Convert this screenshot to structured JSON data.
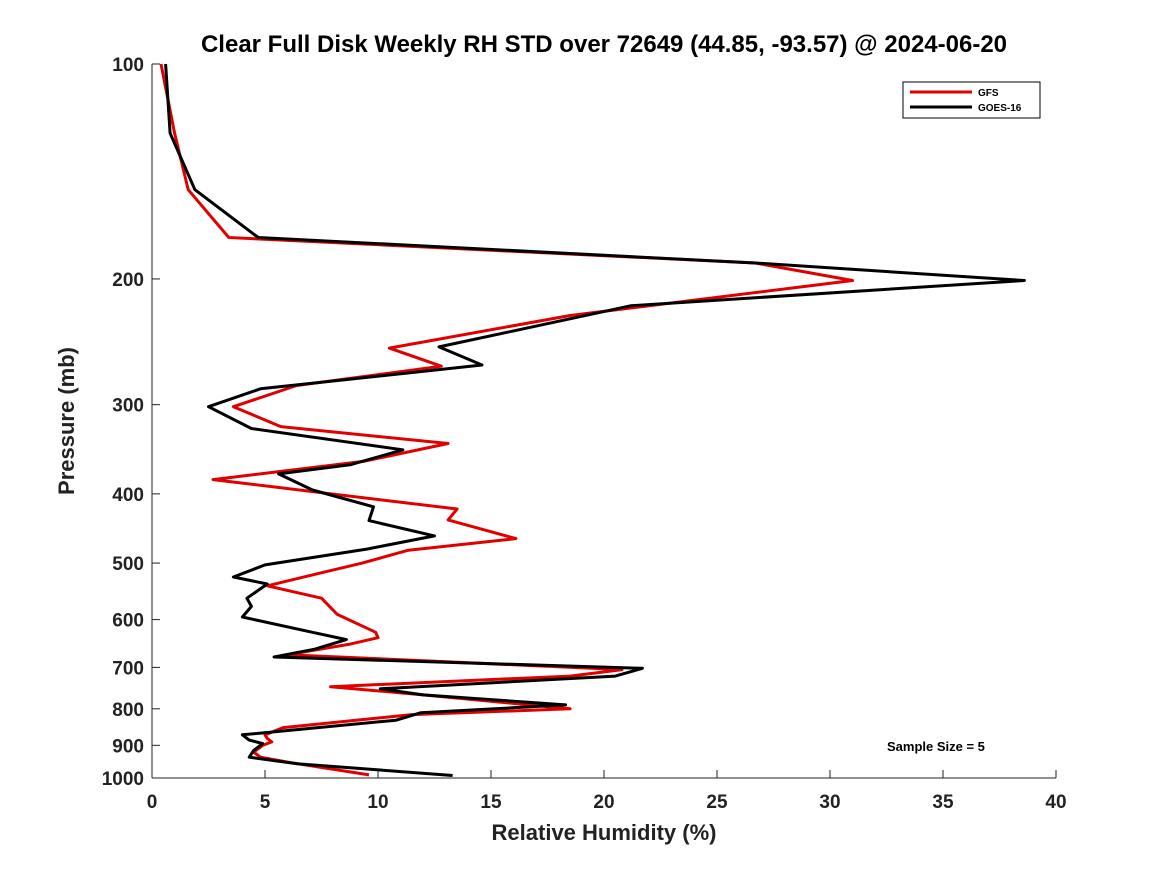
{
  "chart_data": {
    "type": "line",
    "title": "Clear Full Disk Weekly RH STD over 72649 (44.85, -93.57) @ 2024-06-20",
    "xlabel": "Relative Humidity (%)",
    "ylabel": "Pressure (mb)",
    "xlim": [
      0,
      40
    ],
    "ylim": [
      1000,
      100
    ],
    "y_scale": "log",
    "y_reversed": true,
    "x_ticks": [
      "0",
      "5",
      "10",
      "15",
      "20",
      "25",
      "30",
      "35",
      "40"
    ],
    "y_ticks": [
      "100",
      "200",
      "300",
      "400",
      "500",
      "600",
      "700",
      "800",
      "900",
      "1000"
    ],
    "grid": false,
    "legend_position": "top-right",
    "annotation": "Sample Size = 5",
    "series": [
      {
        "name": "GFS",
        "color": "#e00000",
        "points": [
          [
            0.4,
            100
          ],
          [
            1.0,
            125
          ],
          [
            1.6,
            150
          ],
          [
            3.4,
            175
          ],
          [
            26.7,
            190
          ],
          [
            31.0,
            201
          ],
          [
            18.5,
            225
          ],
          [
            10.5,
            250
          ],
          [
            12.8,
            265
          ],
          [
            6.4,
            282
          ],
          [
            3.6,
            302
          ],
          [
            5.7,
            322
          ],
          [
            13.1,
            340
          ],
          [
            9.4,
            360
          ],
          [
            2.7,
            382
          ],
          [
            13.5,
            420
          ],
          [
            13.1,
            435
          ],
          [
            16.1,
            462
          ],
          [
            11.3,
            480
          ],
          [
            9.3,
            500
          ],
          [
            7.6,
            515
          ],
          [
            5.1,
            538
          ],
          [
            7.5,
            560
          ],
          [
            8.2,
            590
          ],
          [
            9.9,
            625
          ],
          [
            10.0,
            636
          ],
          [
            8.7,
            650
          ],
          [
            6.0,
            672
          ],
          [
            20.8,
            705
          ],
          [
            18.5,
            720
          ],
          [
            7.9,
            745
          ],
          [
            12.0,
            765
          ],
          [
            18.5,
            800
          ],
          [
            11.5,
            815
          ],
          [
            5.8,
            850
          ],
          [
            5.0,
            870
          ],
          [
            5.1,
            880
          ],
          [
            5.3,
            890
          ],
          [
            4.9,
            900
          ],
          [
            4.7,
            910
          ],
          [
            4.5,
            920
          ],
          [
            4.8,
            935
          ],
          [
            6.0,
            950
          ],
          [
            9.6,
            990
          ]
        ]
      },
      {
        "name": "GOES-16",
        "color": "#000000",
        "points": [
          [
            0.6,
            100
          ],
          [
            0.8,
            125
          ],
          [
            1.9,
            150
          ],
          [
            4.7,
            175
          ],
          [
            26.7,
            190
          ],
          [
            38.6,
            201
          ],
          [
            21.2,
            218
          ],
          [
            12.7,
            249
          ],
          [
            14.6,
            264
          ],
          [
            4.8,
            285
          ],
          [
            2.5,
            302
          ],
          [
            4.4,
            324
          ],
          [
            11.1,
            347
          ],
          [
            8.8,
            364
          ],
          [
            5.6,
            375
          ],
          [
            7.1,
            395
          ],
          [
            9.8,
            417
          ],
          [
            9.6,
            436
          ],
          [
            12.5,
            458
          ],
          [
            9.5,
            478
          ],
          [
            5.0,
            503
          ],
          [
            3.6,
            523
          ],
          [
            5.1,
            535
          ],
          [
            4.2,
            560
          ],
          [
            4.4,
            575
          ],
          [
            4.0,
            595
          ],
          [
            7.1,
            625
          ],
          [
            8.6,
            640
          ],
          [
            7.2,
            660
          ],
          [
            5.4,
            677
          ],
          [
            21.7,
            702
          ],
          [
            20.5,
            720
          ],
          [
            10.1,
            750
          ],
          [
            12.0,
            765
          ],
          [
            18.3,
            790
          ],
          [
            11.9,
            810
          ],
          [
            10.8,
            830
          ],
          [
            4.0,
            870
          ],
          [
            4.3,
            885
          ],
          [
            4.9,
            895
          ],
          [
            4.5,
            915
          ],
          [
            4.3,
            935
          ],
          [
            6.4,
            955
          ],
          [
            13.3,
            992
          ]
        ]
      }
    ]
  }
}
